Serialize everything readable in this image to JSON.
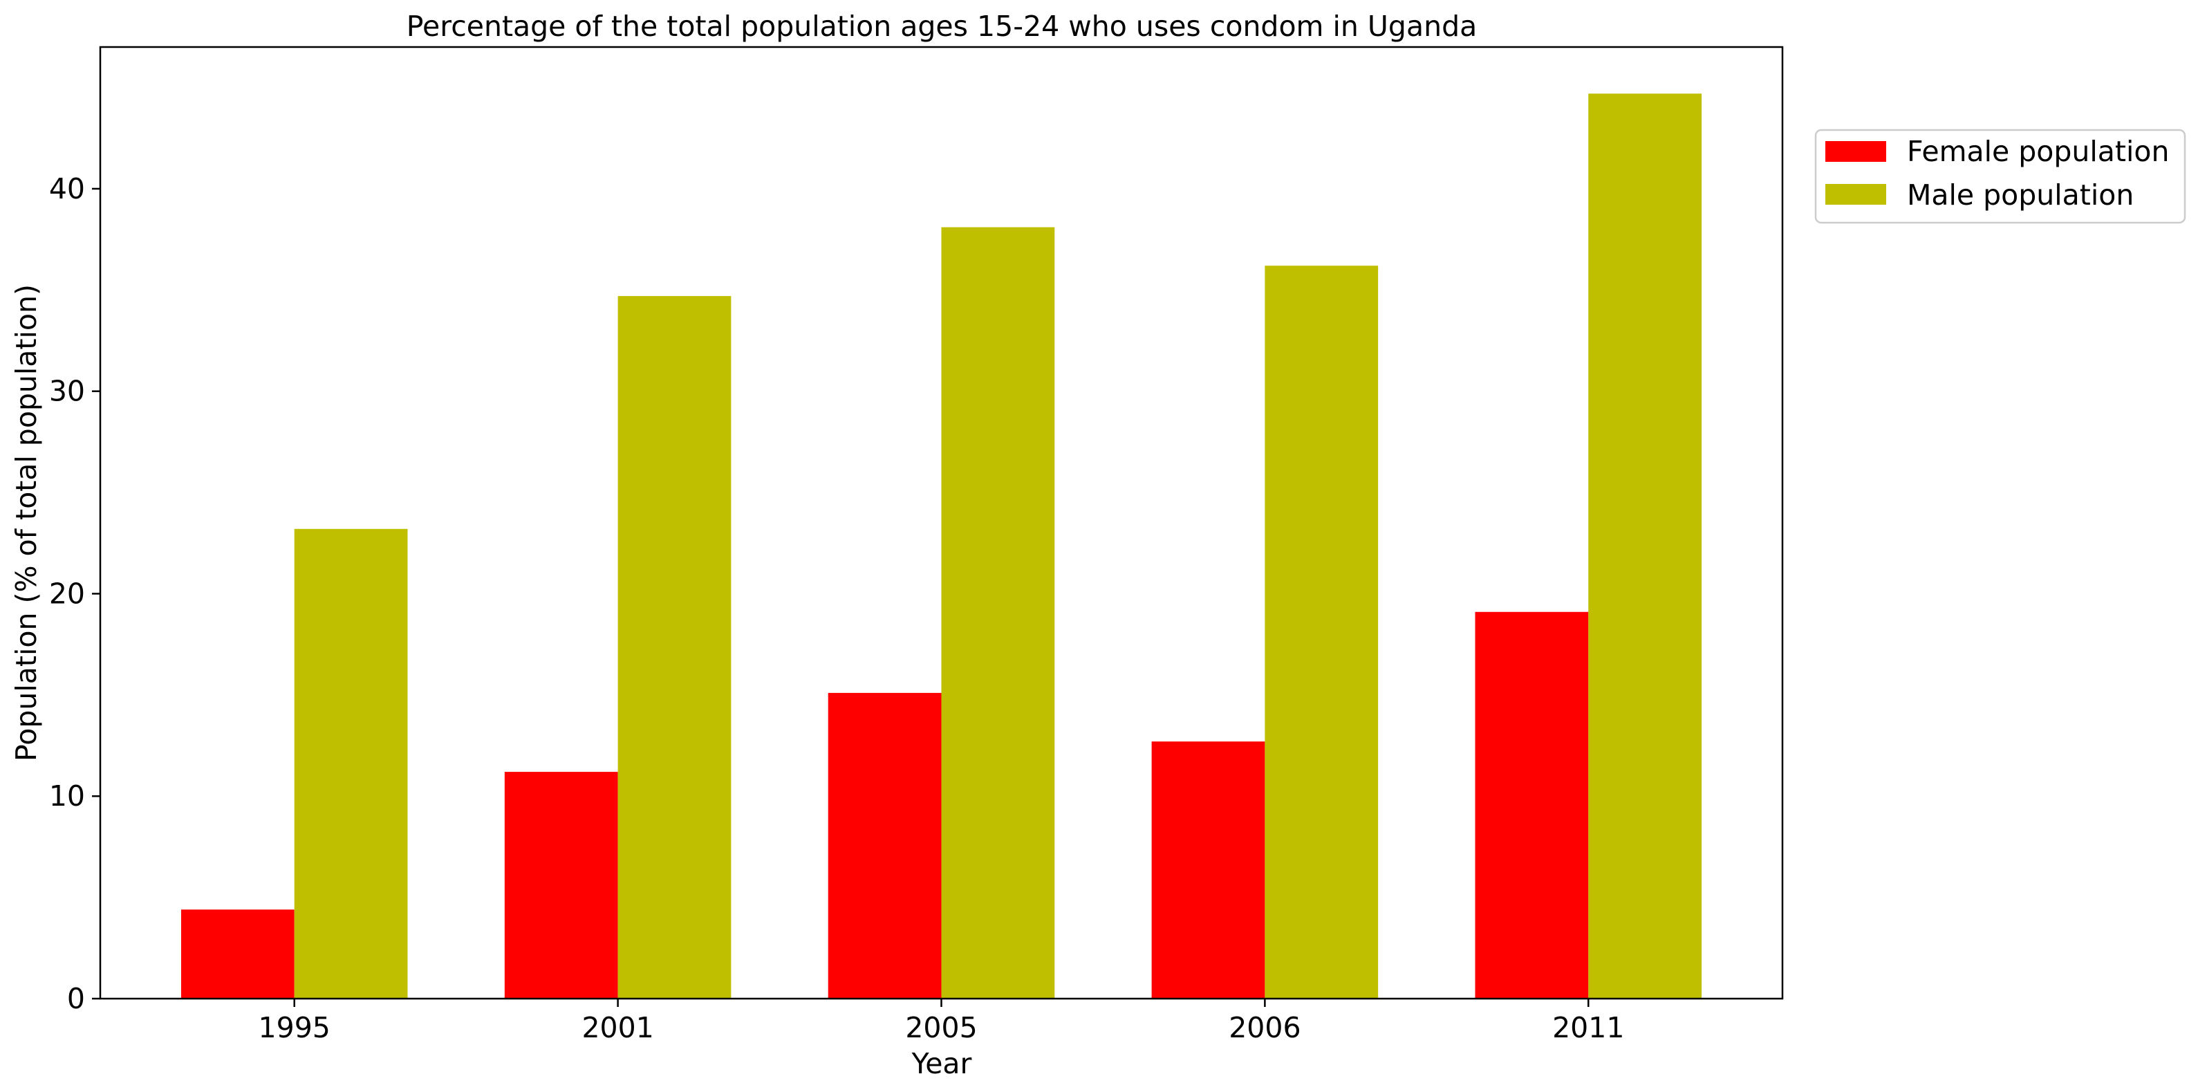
{
  "chart_data": {
    "type": "bar",
    "title": "Percentage of the total population ages 15-24 who uses condom in Uganda",
    "xlabel": "Year",
    "ylabel": "Population (% of total population)",
    "categories": [
      "1995",
      "2001",
      "2005",
      "2006",
      "2011"
    ],
    "series": [
      {
        "name": "Female population",
        "color": "#ff0000",
        "values": [
          4.4,
          11.2,
          15.1,
          12.7,
          19.1
        ]
      },
      {
        "name": "Male population",
        "color": "#bfbf00",
        "values": [
          23.2,
          34.7,
          38.1,
          36.2,
          44.7
        ]
      }
    ],
    "ylim": [
      0,
      47
    ],
    "yticks": [
      0,
      10,
      20,
      30,
      40
    ],
    "grid": false,
    "legend_position": "outside-top-right"
  }
}
